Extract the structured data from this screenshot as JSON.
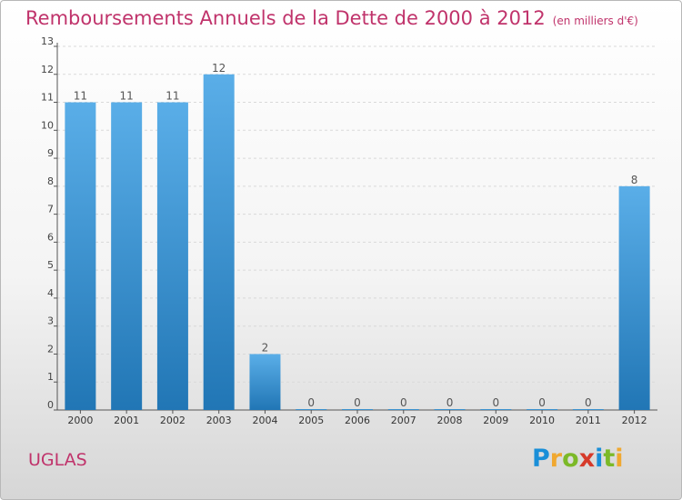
{
  "title": "Remboursements Annuels de la Dette de 2000 à 2012",
  "unit": "(en milliers d'€)",
  "commune": "UGLAS",
  "brand": {
    "letters": [
      "P",
      "r",
      "o",
      "x",
      "i",
      "t",
      "i"
    ],
    "colors": [
      "#1a8fd8",
      "#f0a830",
      "#7cb928",
      "#d63a2a",
      "#1a8fd8",
      "#7cb928",
      "#f0a830"
    ]
  },
  "chart_data": {
    "type": "bar",
    "categories": [
      "2000",
      "2001",
      "2002",
      "2003",
      "2004",
      "2005",
      "2006",
      "2007",
      "2008",
      "2009",
      "2010",
      "2011",
      "2012"
    ],
    "values": [
      11,
      11,
      11,
      12,
      2,
      0,
      0,
      0,
      0,
      0,
      0,
      0,
      8
    ],
    "data_labels": [
      "11",
      "11",
      "11",
      "12",
      "2",
      "0",
      "0",
      "0",
      "0",
      "0",
      "0",
      "0",
      "8"
    ],
    "y_ticks": [
      "0",
      "1",
      "2",
      "3",
      "4",
      "5",
      "6",
      "7",
      "8",
      "9",
      "10",
      "11",
      "12",
      "13"
    ],
    "ylim": [
      0,
      13
    ],
    "bar_color_top": "#5aaee8",
    "bar_color_bottom": "#2176b5"
  }
}
